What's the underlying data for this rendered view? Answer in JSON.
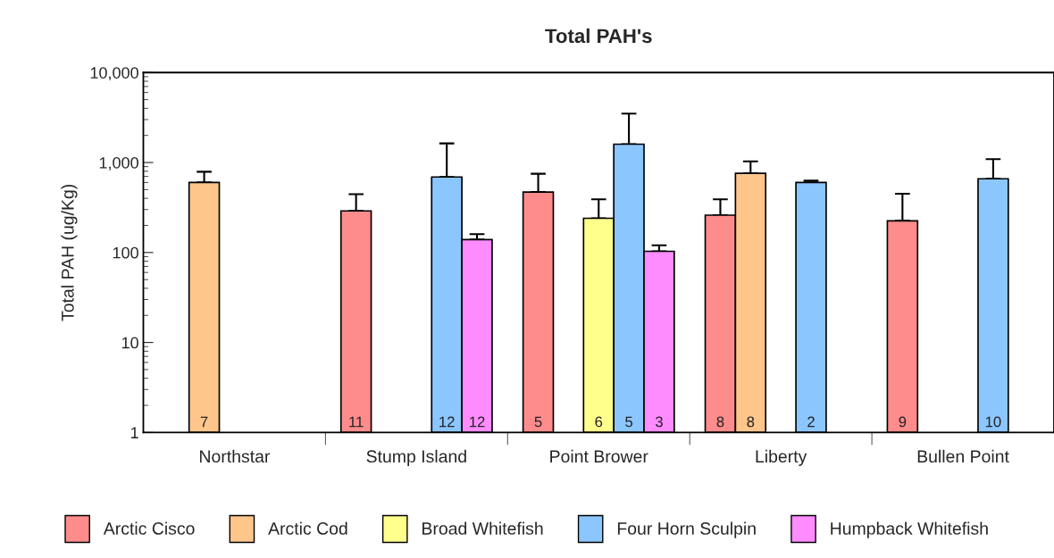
{
  "chart_data": {
    "type": "bar",
    "title": "Total PAH's",
    "ylabel": "Total PAH (ug/Kg)",
    "categories": [
      "Northstar",
      "Stump Island",
      "Point Brower",
      "Liberty",
      "Bullen Point"
    ],
    "series": [
      {
        "name": "Arctic Cisco",
        "color": "#ff8c8c",
        "values": [
          null,
          290,
          470,
          260,
          225
        ],
        "errors": [
          null,
          [
            290,
            445
          ],
          [
            470,
            750
          ],
          [
            260,
            390
          ],
          [
            225,
            450
          ]
        ]
      },
      {
        "name": "Arctic Cod",
        "color": "#ffc68c",
        "values": [
          600,
          null,
          null,
          760,
          null
        ],
        "errors": [
          [
            600,
            790
          ],
          null,
          null,
          [
            760,
            1030
          ],
          null
        ]
      },
      {
        "name": "Broad Whitefish",
        "color": "#ffff8c",
        "values": [
          null,
          null,
          240,
          null,
          null
        ],
        "errors": [
          null,
          null,
          [
            240,
            390
          ],
          null,
          null
        ]
      },
      {
        "name": "Four Horn Sculpin",
        "color": "#8cc6ff",
        "values": [
          null,
          690,
          1600,
          600,
          660
        ],
        "errors": [
          null,
          [
            690,
            1630
          ],
          [
            1600,
            3500
          ],
          [
            600,
            630
          ],
          [
            660,
            1090
          ]
        ]
      },
      {
        "name": "Humpback Whitefish",
        "color": "#ff8cff",
        "values": [
          null,
          139,
          103,
          null,
          null
        ],
        "errors": [
          null,
          [
            139,
            160
          ],
          [
            103,
            120
          ],
          null,
          null
        ]
      }
    ],
    "annotations": [
      "7",
      "11",
      "12",
      "12",
      "5",
      "6",
      "5",
      "3",
      "8",
      "8",
      "2",
      "9",
      "10"
    ],
    "log": "y",
    "ylim": [
      1,
      10000
    ],
    "yticks": [
      1,
      10,
      100,
      {
        "value": 1000,
        "label": "1,000"
      },
      {
        "value": 10000,
        "label": "10,000"
      }
    ],
    "grid": false,
    "legend": "bottom"
  }
}
